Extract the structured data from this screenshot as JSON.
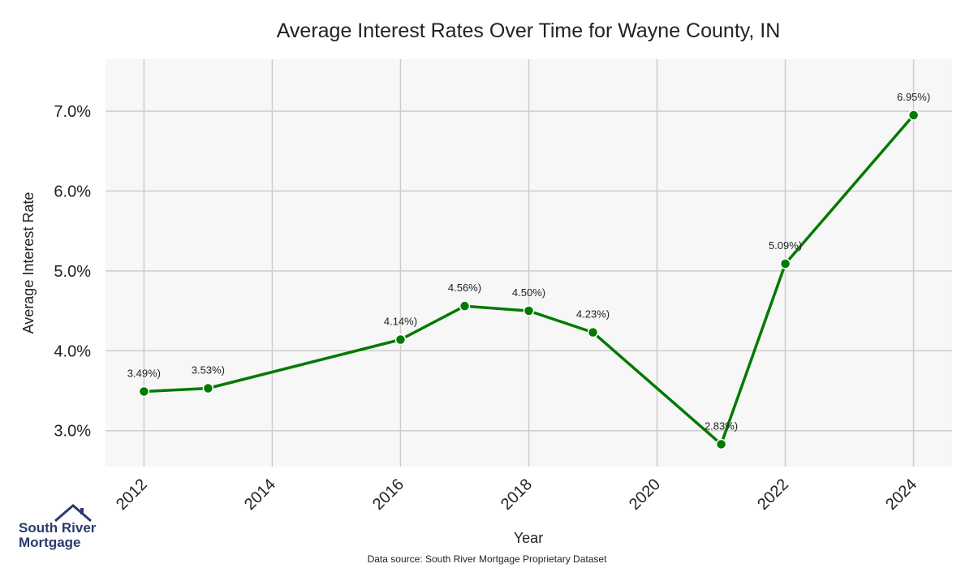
{
  "chart_data": {
    "type": "line",
    "title": "Average Interest Rates Over Time for Wayne County, IN",
    "xlabel": "Year",
    "ylabel": "Average Interest Rate",
    "x": [
      2012,
      2013,
      2016,
      2017,
      2018,
      2019,
      2021,
      2022,
      2024
    ],
    "values": [
      3.49,
      3.53,
      4.14,
      4.56,
      4.5,
      4.23,
      2.83,
      5.09,
      6.95
    ],
    "point_labels": [
      "3.49%)",
      "3.53%)",
      "4.14%)",
      "4.56%)",
      "4.50%)",
      "4.23%)",
      "2.83%)",
      "5.09%)",
      "6.95%)"
    ],
    "xticks": [
      2012,
      2014,
      2016,
      2018,
      2020,
      2022,
      2024
    ],
    "xtick_labels": [
      "2012",
      "2014",
      "2016",
      "2018",
      "2020",
      "2022",
      "2024"
    ],
    "yticks": [
      3.0,
      4.0,
      5.0,
      6.0,
      7.0
    ],
    "ytick_labels": [
      "3.0%",
      "4.0%",
      "5.0%",
      "6.0%",
      "7.0%"
    ],
    "xlim": [
      2011.4,
      2024.6
    ],
    "ylim": [
      2.55,
      7.65
    ],
    "grid": true,
    "colors": {
      "line": "#007a00",
      "grid": "#cccccc",
      "plot_bg": "#f7f7f7",
      "text": "#222222"
    },
    "source": "Data source: South River Mortgage Proprietary Dataset"
  },
  "logo": {
    "line1": "South River",
    "line2": "Mortgage",
    "color": "#2b3a6e"
  }
}
